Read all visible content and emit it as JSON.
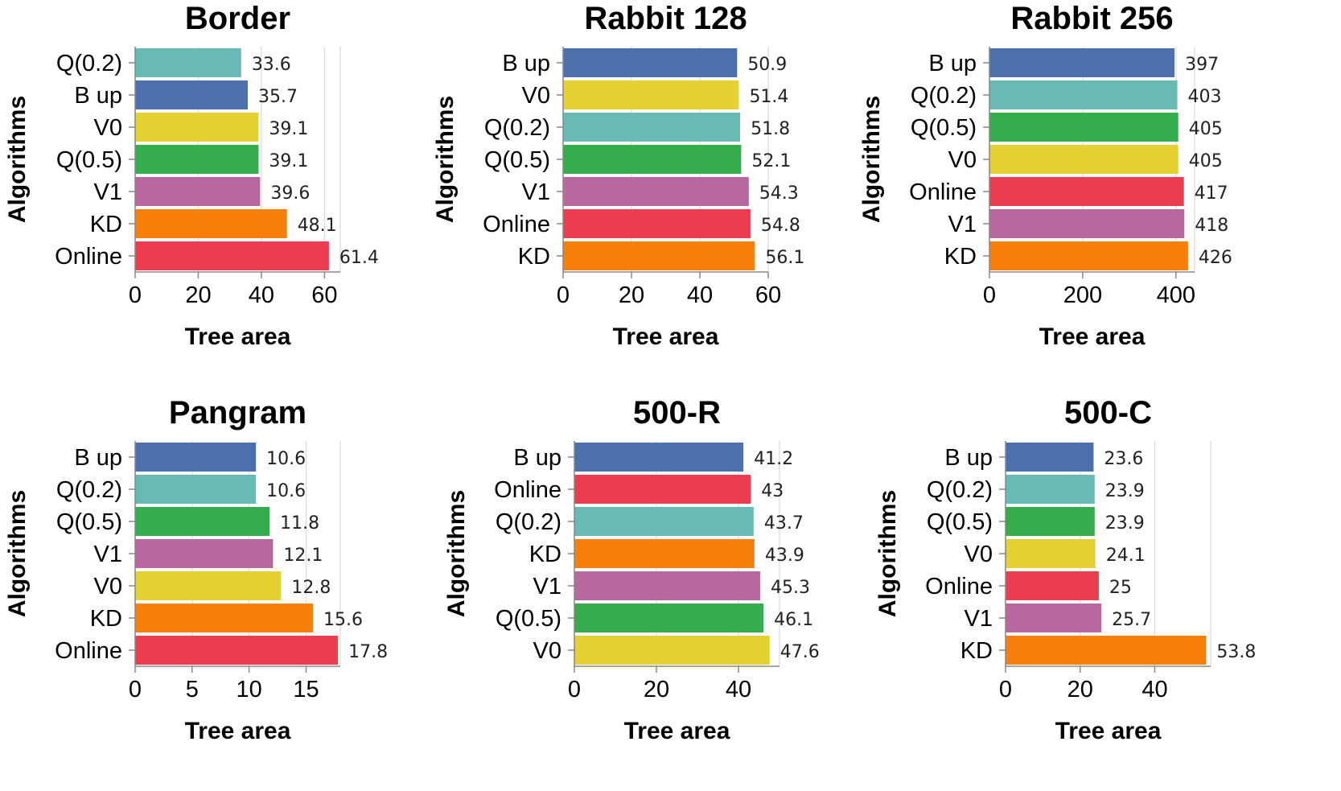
{
  "colors": {
    "B up": "#4c6fad",
    "Q(0.2)": "#68bbb4",
    "Q(0.5)": "#36ad4c",
    "V0": "#e5d232",
    "V1": "#b8689f",
    "KD": "#f7800b",
    "Online": "#ec3c4f"
  },
  "chart_data": [
    {
      "type": "bar",
      "orientation": "horizontal",
      "title": "Border",
      "xlabel": "Tree area",
      "ylabel": "Algorithms",
      "categories": [
        "Q(0.2)",
        "B up",
        "V0",
        "Q(0.5)",
        "V1",
        "KD",
        "Online"
      ],
      "values": [
        33.6,
        35.7,
        39.1,
        39.1,
        39.6,
        48.1,
        61.4
      ],
      "value_labels": [
        "33.6",
        "35.7",
        "39.1",
        "39.1",
        "39.6",
        "48.1",
        "61.4"
      ],
      "xlim": [
        0,
        65
      ],
      "xticks": [
        0,
        20,
        40,
        60
      ],
      "grid": true
    },
    {
      "type": "bar",
      "orientation": "horizontal",
      "title": "Rabbit 128",
      "xlabel": "Tree area",
      "ylabel": "Algorithms",
      "categories": [
        "B up",
        "V0",
        "Q(0.2)",
        "Q(0.5)",
        "V1",
        "Online",
        "KD"
      ],
      "values": [
        50.9,
        51.4,
        51.8,
        52.1,
        54.3,
        54.8,
        56.1
      ],
      "value_labels": [
        "50.9",
        "51.4",
        "51.8",
        "52.1",
        "54.3",
        "54.8",
        "56.1"
      ],
      "xlim": [
        0,
        60
      ],
      "xticks": [
        0,
        20,
        40,
        60
      ],
      "grid": true
    },
    {
      "type": "bar",
      "orientation": "horizontal",
      "title": "Rabbit 256",
      "xlabel": "Tree area",
      "ylabel": "Algorithms",
      "categories": [
        "B up",
        "Q(0.2)",
        "Q(0.5)",
        "V0",
        "Online",
        "V1",
        "KD"
      ],
      "values": [
        397,
        403,
        405,
        405,
        417,
        418,
        426
      ],
      "value_labels": [
        "397",
        "403",
        "405",
        "405",
        "417",
        "418",
        "426"
      ],
      "xlim": [
        0,
        440
      ],
      "xticks": [
        0,
        200,
        400
      ],
      "grid": true
    },
    {
      "type": "bar",
      "orientation": "horizontal",
      "title": "Pangram",
      "xlabel": "Tree area",
      "ylabel": "Algorithms",
      "categories": [
        "B up",
        "Q(0.2)",
        "Q(0.5)",
        "V1",
        "V0",
        "KD",
        "Online"
      ],
      "values": [
        10.6,
        10.6,
        11.8,
        12.1,
        12.8,
        15.6,
        17.8
      ],
      "value_labels": [
        "10.6",
        "10.6",
        "11.8",
        "12.1",
        "12.8",
        "15.6",
        "17.8"
      ],
      "xlim": [
        0,
        18
      ],
      "xticks": [
        0,
        5,
        10,
        15
      ],
      "grid": true
    },
    {
      "type": "bar",
      "orientation": "horizontal",
      "title": "500-R",
      "xlabel": "Tree area",
      "ylabel": "Algorithms",
      "categories": [
        "B up",
        "Online",
        "Q(0.2)",
        "KD",
        "V1",
        "Q(0.5)",
        "V0"
      ],
      "values": [
        41.2,
        43,
        43.7,
        43.9,
        45.3,
        46.1,
        47.6
      ],
      "value_labels": [
        "41.2",
        "43",
        "43.7",
        "43.9",
        "45.3",
        "46.1",
        "47.6"
      ],
      "xlim": [
        0,
        50
      ],
      "xticks": [
        0,
        20,
        40
      ],
      "grid": true
    },
    {
      "type": "bar",
      "orientation": "horizontal",
      "title": "500-C",
      "xlabel": "Tree area",
      "ylabel": "Algorithms",
      "categories": [
        "B up",
        "Q(0.2)",
        "Q(0.5)",
        "V0",
        "Online",
        "V1",
        "KD"
      ],
      "values": [
        23.6,
        23.9,
        23.9,
        24.1,
        25,
        25.7,
        53.8
      ],
      "value_labels": [
        "23.6",
        "23.9",
        "23.9",
        "24.1",
        "25",
        "25.7",
        "53.8"
      ],
      "xlim": [
        0,
        55
      ],
      "xticks": [
        0,
        20,
        40
      ],
      "grid": true
    }
  ]
}
